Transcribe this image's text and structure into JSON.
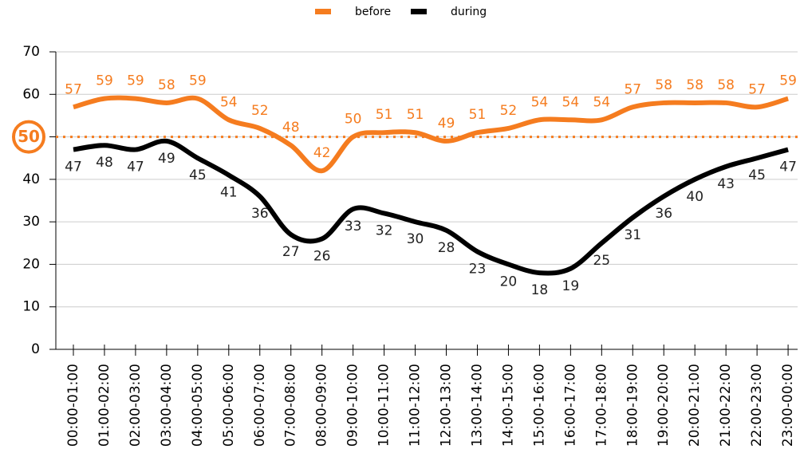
{
  "chart_data": {
    "type": "line",
    "categories": [
      "00:00-01:00",
      "01:00-02:00",
      "02:00-03:00",
      "03:00-04:00",
      "04:00-05:00",
      "05:00-06:00",
      "06:00-07:00",
      "07:00-08:00",
      "08:00-09:00",
      "09:00-10:00",
      "10:00-11:00",
      "11:00-12:00",
      "12:00-13:00",
      "13:00-14:00",
      "14:00-15:00",
      "15:00-16:00",
      "16:00-17:00",
      "17:00-18:00",
      "18:00-19:00",
      "19:00-20:00",
      "20:00-21:00",
      "21:00-22:00",
      "22:00-23:00",
      "23:00-00:00"
    ],
    "series": [
      {
        "name": "before",
        "color": "#f57c1f",
        "values": [
          57,
          59,
          59,
          58,
          59,
          54,
          52,
          48,
          42,
          50,
          51,
          51,
          49,
          51,
          52,
          54,
          54,
          54,
          57,
          58,
          58,
          58,
          57,
          59
        ]
      },
      {
        "name": "during",
        "color": "#000000",
        "values": [
          47,
          48,
          47,
          49,
          45,
          41,
          36,
          27,
          26,
          33,
          32,
          30,
          28,
          23,
          20,
          18,
          19,
          25,
          31,
          36,
          40,
          43,
          45,
          47
        ]
      }
    ],
    "ylim": [
      0,
      70
    ],
    "yticks": [
      0,
      10,
      20,
      30,
      40,
      50,
      60,
      70
    ],
    "grid": true,
    "reference_line": 50,
    "legend": "top"
  }
}
